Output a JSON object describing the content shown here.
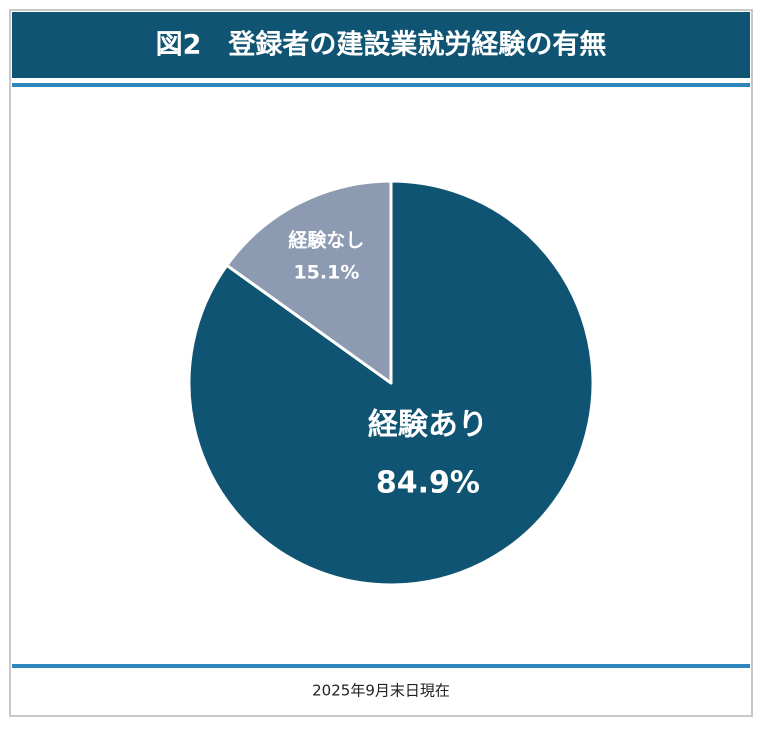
{
  "chart_data": {
    "type": "pie",
    "title": "図2　登録者の建設業就労経験の有無",
    "categories": [
      "経験あり",
      "経験なし"
    ],
    "values": [
      84.9,
      15.1
    ],
    "value_labels": [
      "84.9%",
      "15.1%"
    ],
    "colors": [
      "#0f5472",
      "#8c9bb1"
    ],
    "note": "2025年9月末日現在"
  }
}
